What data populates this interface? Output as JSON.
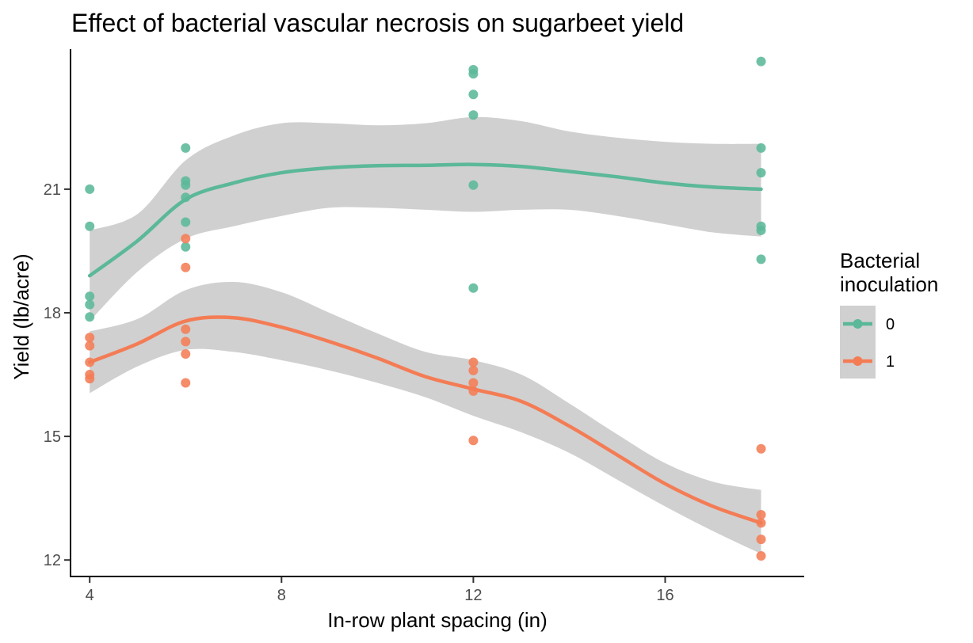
{
  "chart_data": {
    "type": "scatter",
    "title": "Effect of bacterial vascular necrosis on sugarbeet yield",
    "xlabel": "In-row plant spacing (in)",
    "ylabel": "Yield (lb/acre)",
    "xlim": [
      3.6,
      18.9
    ],
    "ylim": [
      11.6,
      24.4
    ],
    "x_ticks": [
      4,
      8,
      12,
      16
    ],
    "y_ticks": [
      12,
      15,
      18,
      21
    ],
    "grid": false,
    "legend": {
      "title_lines": [
        "Bacterial",
        "inoculation"
      ],
      "placement": "right"
    },
    "band_color": "#d0d0d0",
    "series": [
      {
        "name": "0",
        "color": "#5bb898",
        "points": [
          [
            4,
            21.0
          ],
          [
            4,
            20.1
          ],
          [
            4,
            18.4
          ],
          [
            4,
            18.2
          ],
          [
            4,
            17.9
          ],
          [
            6,
            22.0
          ],
          [
            6,
            21.2
          ],
          [
            6,
            21.1
          ],
          [
            6,
            20.8
          ],
          [
            6,
            20.2
          ],
          [
            6,
            19.6
          ],
          [
            12,
            23.9
          ],
          [
            12,
            23.8
          ],
          [
            12,
            23.3
          ],
          [
            12,
            22.8
          ],
          [
            12,
            21.1
          ],
          [
            12,
            18.6
          ],
          [
            18,
            24.1
          ],
          [
            18,
            22.0
          ],
          [
            18,
            21.4
          ],
          [
            18,
            20.1
          ],
          [
            18,
            20.0
          ],
          [
            18,
            19.3
          ]
        ],
        "fit": [
          [
            4,
            18.9
          ],
          [
            5,
            19.75
          ],
          [
            6,
            20.75
          ],
          [
            7,
            21.15
          ],
          [
            8,
            21.4
          ],
          [
            9,
            21.52
          ],
          [
            10,
            21.57
          ],
          [
            11,
            21.58
          ],
          [
            12,
            21.6
          ],
          [
            13,
            21.55
          ],
          [
            14,
            21.43
          ],
          [
            15,
            21.3
          ],
          [
            16,
            21.15
          ],
          [
            17,
            21.05
          ],
          [
            18,
            21.0
          ]
        ],
        "ci_upper": [
          [
            4,
            20.0
          ],
          [
            5,
            20.4
          ],
          [
            6,
            21.7
          ],
          [
            7,
            22.3
          ],
          [
            8,
            22.6
          ],
          [
            9,
            22.6
          ],
          [
            10,
            22.55
          ],
          [
            11,
            22.6
          ],
          [
            12,
            22.75
          ],
          [
            13,
            22.65
          ],
          [
            14,
            22.4
          ],
          [
            15,
            22.25
          ],
          [
            16,
            22.15
          ],
          [
            17,
            22.1
          ],
          [
            18,
            22.1
          ]
        ],
        "ci_lower": [
          [
            4,
            17.8
          ],
          [
            5,
            19.0
          ],
          [
            6,
            19.8
          ],
          [
            7,
            20.1
          ],
          [
            8,
            20.35
          ],
          [
            9,
            20.55
          ],
          [
            10,
            20.55
          ],
          [
            11,
            20.5
          ],
          [
            12,
            20.45
          ],
          [
            13,
            20.5
          ],
          [
            14,
            20.5
          ],
          [
            15,
            20.35
          ],
          [
            16,
            20.15
          ],
          [
            17,
            19.95
          ],
          [
            18,
            19.85
          ]
        ]
      },
      {
        "name": "1",
        "color": "#f47c55",
        "points": [
          [
            4,
            17.4
          ],
          [
            4,
            17.2
          ],
          [
            4,
            16.8
          ],
          [
            4,
            16.5
          ],
          [
            4,
            16.4
          ],
          [
            6,
            19.8
          ],
          [
            6,
            19.1
          ],
          [
            6,
            17.6
          ],
          [
            6,
            17.3
          ],
          [
            6,
            17.0
          ],
          [
            6,
            16.3
          ],
          [
            12,
            16.8
          ],
          [
            12,
            16.6
          ],
          [
            12,
            16.3
          ],
          [
            12,
            16.1
          ],
          [
            12,
            14.9
          ],
          [
            18,
            14.7
          ],
          [
            18,
            13.1
          ],
          [
            18,
            12.9
          ],
          [
            18,
            12.5
          ],
          [
            18,
            12.1
          ]
        ],
        "fit": [
          [
            4,
            16.8
          ],
          [
            5,
            17.25
          ],
          [
            6,
            17.8
          ],
          [
            7,
            17.88
          ],
          [
            8,
            17.65
          ],
          [
            9,
            17.3
          ],
          [
            10,
            16.9
          ],
          [
            11,
            16.45
          ],
          [
            12,
            16.15
          ],
          [
            13,
            15.85
          ],
          [
            14,
            15.25
          ],
          [
            15,
            14.55
          ],
          [
            16,
            13.85
          ],
          [
            17,
            13.3
          ],
          [
            18,
            12.9
          ]
        ],
        "ci_upper": [
          [
            4,
            17.55
          ],
          [
            5,
            17.85
          ],
          [
            6,
            18.55
          ],
          [
            7,
            18.75
          ],
          [
            8,
            18.5
          ],
          [
            9,
            18.0
          ],
          [
            10,
            17.5
          ],
          [
            11,
            17.05
          ],
          [
            12,
            16.85
          ],
          [
            13,
            16.5
          ],
          [
            14,
            15.8
          ],
          [
            15,
            15.05
          ],
          [
            16,
            14.35
          ],
          [
            17,
            13.9
          ],
          [
            18,
            13.7
          ]
        ],
        "ci_lower": [
          [
            4,
            16.05
          ],
          [
            5,
            16.7
          ],
          [
            6,
            17.1
          ],
          [
            7,
            17.05
          ],
          [
            8,
            16.85
          ],
          [
            9,
            16.6
          ],
          [
            10,
            16.3
          ],
          [
            11,
            15.95
          ],
          [
            12,
            15.5
          ],
          [
            13,
            15.1
          ],
          [
            14,
            14.6
          ],
          [
            15,
            13.95
          ],
          [
            16,
            13.3
          ],
          [
            17,
            12.7
          ],
          [
            18,
            12.15
          ]
        ]
      }
    ]
  }
}
